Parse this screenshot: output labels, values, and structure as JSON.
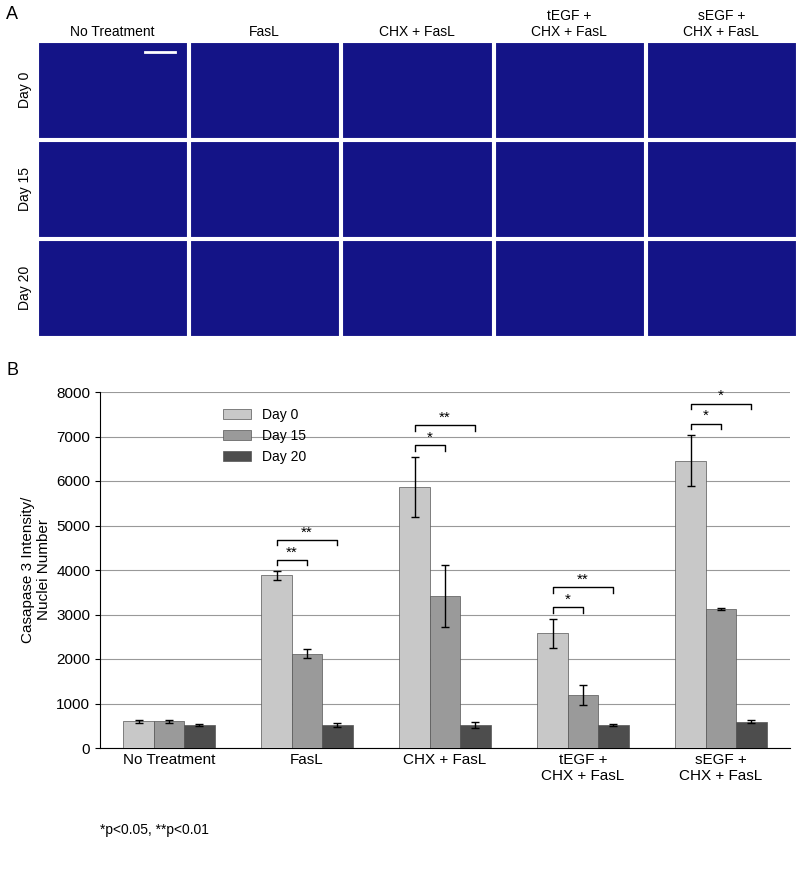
{
  "panel_a": {
    "label": "A",
    "columns": [
      "No Treatment",
      "FasL",
      "CHX + FasL",
      "tEGF +\nCHX + FasL",
      "sEGF +\nCHX + FasL"
    ],
    "rows": [
      "Day 0",
      "Day 15",
      "Day 20"
    ]
  },
  "panel_b_label": "B",
  "footnote": "*p<0.05, **p<0.01",
  "chart_data": {
    "type": "bar",
    "y_label": "Casapase 3 Intensity/\nNuclei Number",
    "categories": [
      "No Treatment",
      "FasL",
      "CHX + FasL",
      "tEGF +\nCHX + FasL",
      "sEGF +\nCHX + FasL"
    ],
    "series": [
      {
        "name": "Day 0",
        "color": "#c8c8c8",
        "values": [
          600,
          3880,
          5870,
          2580,
          6460
        ],
        "errors": [
          40,
          100,
          680,
          330,
          580
        ]
      },
      {
        "name": "Day 15",
        "color": "#9a9a9a",
        "values": [
          600,
          2120,
          3420,
          1190,
          3120
        ],
        "errors": [
          40,
          100,
          700,
          220,
          30
        ]
      },
      {
        "name": "Day 20",
        "color": "#4d4d4d",
        "values": [
          510,
          520,
          520,
          520,
          590
        ],
        "errors": [
          20,
          50,
          70,
          30,
          30
        ]
      }
    ],
    "significance": [
      {
        "category": "FasL",
        "from": "Day 0",
        "to": "Day 15",
        "label": "**"
      },
      {
        "category": "FasL",
        "from": "Day 0",
        "to": "Day 20",
        "label": "**"
      },
      {
        "category": "CHX + FasL",
        "from": "Day 0",
        "to": "Day 15",
        "label": "*"
      },
      {
        "category": "CHX + FasL",
        "from": "Day 0",
        "to": "Day 20",
        "label": "**"
      },
      {
        "category": "tEGF +\nCHX + FasL",
        "from": "Day 0",
        "to": "Day 15",
        "label": "*"
      },
      {
        "category": "tEGF +\nCHX + FasL",
        "from": "Day 0",
        "to": "Day 20",
        "label": "**"
      },
      {
        "category": "sEGF +\nCHX + FasL",
        "from": "Day 0",
        "to": "Day 15",
        "label": "*"
      },
      {
        "category": "sEGF +\nCHX + FasL",
        "from": "Day 0",
        "to": "Day 20",
        "label": "*"
      }
    ],
    "ylim": [
      0,
      8000
    ],
    "yticks": [
      0,
      1000,
      2000,
      3000,
      4000,
      5000,
      6000,
      7000,
      8000
    ],
    "grid": true,
    "legend": "upper left"
  }
}
